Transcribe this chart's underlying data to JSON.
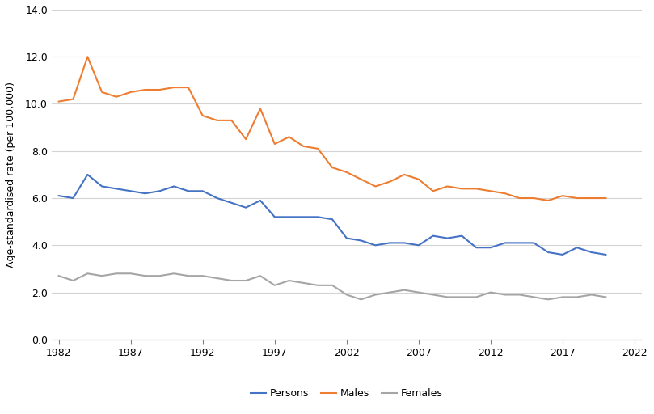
{
  "years": [
    1982,
    1983,
    1984,
    1985,
    1986,
    1987,
    1988,
    1989,
    1990,
    1991,
    1992,
    1993,
    1994,
    1995,
    1996,
    1997,
    1998,
    1999,
    2000,
    2001,
    2002,
    2003,
    2004,
    2005,
    2006,
    2007,
    2008,
    2009,
    2010,
    2011,
    2012,
    2013,
    2014,
    2015,
    2016,
    2017,
    2018,
    2019,
    2020
  ],
  "persons": [
    6.1,
    6.0,
    7.0,
    6.5,
    6.4,
    6.3,
    6.2,
    6.3,
    6.5,
    6.3,
    6.3,
    6.0,
    5.8,
    5.6,
    5.9,
    5.2,
    5.2,
    5.2,
    5.2,
    5.1,
    4.3,
    4.2,
    4.0,
    4.1,
    4.1,
    4.0,
    4.4,
    4.3,
    4.4,
    3.9,
    3.9,
    4.1,
    4.1,
    4.1,
    3.7,
    3.6,
    3.9,
    3.7,
    3.6
  ],
  "males": [
    10.1,
    10.2,
    12.0,
    10.5,
    10.3,
    10.5,
    10.6,
    10.6,
    10.7,
    10.7,
    9.5,
    9.3,
    9.3,
    8.5,
    9.8,
    8.3,
    8.6,
    8.2,
    8.1,
    7.3,
    7.1,
    6.8,
    6.5,
    6.7,
    7.0,
    6.8,
    6.3,
    6.5,
    6.4,
    6.4,
    6.3,
    6.2,
    6.0,
    6.0,
    5.9,
    6.1,
    6.0,
    6.0,
    6.0
  ],
  "females": [
    2.7,
    2.5,
    2.8,
    2.7,
    2.8,
    2.8,
    2.7,
    2.7,
    2.8,
    2.7,
    2.7,
    2.6,
    2.5,
    2.5,
    2.7,
    2.3,
    2.5,
    2.4,
    2.3,
    2.3,
    1.9,
    1.7,
    1.9,
    2.0,
    2.1,
    2.0,
    1.9,
    1.8,
    1.8,
    1.8,
    2.0,
    1.9,
    1.9,
    1.8,
    1.7,
    1.8,
    1.8,
    1.9,
    1.8
  ],
  "persons_color": "#4472C4",
  "males_color": "#ED7D31",
  "females_color": "#A5A5A5",
  "ylabel": "Age-standardised rate (per 100,000)",
  "ylim": [
    0.0,
    14.0
  ],
  "yticks": [
    0.0,
    2.0,
    4.0,
    6.0,
    8.0,
    10.0,
    12.0,
    14.0
  ],
  "xticks": [
    1982,
    1987,
    1992,
    1997,
    2002,
    2007,
    2012,
    2017,
    2022
  ],
  "xlim": [
    1981.5,
    2022.5
  ],
  "legend_labels": [
    "Persons",
    "Males",
    "Females"
  ],
  "line_width": 1.5
}
